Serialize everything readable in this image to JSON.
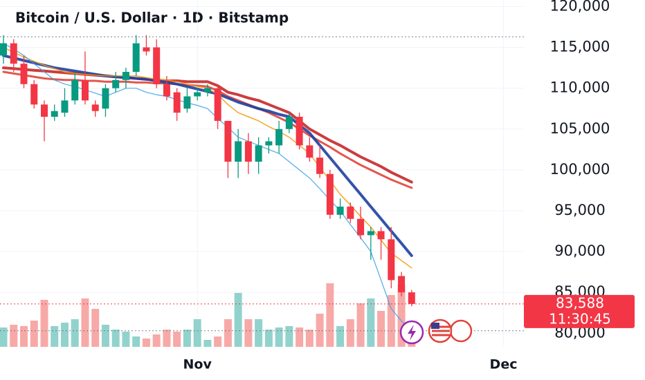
{
  "chart_data": {
    "type": "candlestick",
    "title": "Bitcoin / U.S. Dollar · 1D · Bitstamp",
    "x": [
      0,
      1,
      2,
      3,
      4,
      5,
      6,
      7,
      8,
      9,
      10,
      11,
      12,
      13,
      14,
      15,
      16,
      17,
      18,
      19,
      20,
      21,
      22,
      23,
      24,
      25,
      26,
      27,
      28,
      29,
      30,
      31,
      32,
      33,
      34,
      35,
      36,
      37,
      38,
      39,
      40
    ],
    "open": [
      114000,
      115500,
      113000,
      110500,
      108000,
      106500,
      107000,
      108500,
      111000,
      108000,
      107500,
      110000,
      111000,
      112000,
      115000,
      115000,
      110500,
      109500,
      107500,
      109000,
      109500,
      110000,
      106000,
      101000,
      103500,
      101000,
      103000,
      103000,
      105000,
      106500,
      103000,
      101500,
      99500,
      94500,
      95500,
      94000,
      92000,
      92500,
      91500,
      87000,
      85000
    ],
    "high": [
      116500,
      116000,
      114000,
      111000,
      108500,
      108000,
      110000,
      112000,
      114500,
      108500,
      110500,
      112000,
      112500,
      116500,
      116500,
      116000,
      111500,
      110000,
      110000,
      110000,
      110500,
      110500,
      106000,
      105000,
      104500,
      104000,
      104000,
      106000,
      107000,
      107000,
      104000,
      103000,
      100000,
      96500,
      96000,
      95500,
      93000,
      93000,
      93000,
      87500,
      85300
    ],
    "low": [
      113000,
      112000,
      110000,
      107500,
      103500,
      106000,
      106500,
      108000,
      108000,
      106500,
      106500,
      109500,
      110000,
      111500,
      114000,
      110000,
      108500,
      106000,
      107000,
      108500,
      109000,
      105000,
      99000,
      99000,
      99500,
      99500,
      102000,
      102000,
      104500,
      102500,
      101000,
      99000,
      94000,
      94000,
      93500,
      91500,
      89000,
      89000,
      85500,
      84500,
      83300
    ],
    "close": [
      115500,
      113000,
      110500,
      108000,
      106500,
      107200,
      108500,
      111000,
      108500,
      107200,
      110000,
      111000,
      112000,
      115500,
      114500,
      110500,
      109000,
      107000,
      109000,
      109500,
      110000,
      106000,
      101000,
      103500,
      101000,
      103000,
      103500,
      105000,
      106500,
      103000,
      101500,
      99500,
      94500,
      95500,
      94000,
      92000,
      92500,
      91500,
      86500,
      85000,
      83588
    ],
    "volume": [
      28,
      32,
      30,
      38,
      68,
      30,
      35,
      40,
      70,
      55,
      32,
      25,
      22,
      15,
      12,
      18,
      25,
      22,
      25,
      40,
      10,
      15,
      40,
      78,
      40,
      40,
      25,
      28,
      30,
      28,
      25,
      48,
      92,
      30,
      40,
      63,
      70,
      52,
      75,
      90,
      20
    ],
    "up_color": "#089981",
    "down_color": "#f23645",
    "volume_up_color": "#92d2cc",
    "volume_down_color": "#f7a9a7",
    "lines": [
      {
        "color": "#c62828",
        "values": [
          112500,
          112400,
          112300,
          112200,
          112100,
          112000,
          111900,
          111800,
          111700,
          111600,
          111500,
          111400,
          111300,
          111200,
          111100,
          111000,
          110900,
          110900,
          110800,
          110800,
          110800,
          110300,
          109500,
          109200,
          108800,
          108500,
          108000,
          107500,
          107000,
          106000,
          105000,
          104300,
          103600,
          103000,
          102300,
          101600,
          101000,
          100400,
          99700,
          99100,
          98500
        ]
      },
      {
        "color": "#e0443a",
        "values": [
          112000,
          111800,
          111600,
          111400,
          111200,
          111100,
          111000,
          111000,
          110900,
          110900,
          110800,
          110800,
          110800,
          110700,
          110700,
          110600,
          110600,
          110500,
          110400,
          110300,
          110200,
          109700,
          109000,
          108500,
          108000,
          107500,
          107000,
          106400,
          105800,
          105000,
          104200,
          103500,
          102800,
          102000,
          101300,
          100600,
          100000,
          99400,
          98800,
          98300,
          97800
        ]
      },
      {
        "color": "#1e40a0",
        "values": [
          114000,
          113700,
          113400,
          113100,
          112800,
          112500,
          112300,
          112100,
          111900,
          111700,
          111500,
          111400,
          111300,
          111200,
          111100,
          110900,
          110700,
          110500,
          110200,
          109900,
          109600,
          109300,
          108800,
          108300,
          107900,
          107500,
          107200,
          106800,
          106500,
          105500,
          104500,
          103000,
          101500,
          100000,
          98500,
          97000,
          95500,
          94000,
          92500,
          91000,
          89500
        ]
      },
      {
        "color": "#f39c12",
        "values": [
          115000,
          114400,
          113800,
          113300,
          112800,
          112400,
          112000,
          111800,
          111700,
          111600,
          111500,
          111500,
          111500,
          111500,
          111300,
          111100,
          111000,
          110800,
          110500,
          110200,
          110000,
          109200,
          108000,
          107000,
          106500,
          106000,
          105300,
          104700,
          104000,
          103000,
          102000,
          100300,
          98700,
          97000,
          95700,
          94300,
          93000,
          91400,
          89800,
          88900,
          88000
        ]
      },
      {
        "color": "#3aa0e8",
        "values": [
          115500,
          114800,
          114000,
          113000,
          112000,
          111000,
          110500,
          110200,
          109800,
          109400,
          109000,
          109500,
          110000,
          110000,
          109500,
          109200,
          109000,
          108600,
          108200,
          107900,
          107500,
          106300,
          105200,
          104000,
          103500,
          103000,
          102500,
          102000,
          101000,
          100000,
          99000,
          97700,
          96300,
          95000,
          93300,
          91700,
          90000,
          86500,
          83000,
          81500,
          80000
        ]
      }
    ],
    "ylim": [
      78500,
      120800
    ],
    "yticks": [
      {
        "value": 80000,
        "label": "80,000"
      },
      {
        "value": 85000,
        "label": "85,000"
      },
      {
        "value": 90000,
        "label": "90,000"
      },
      {
        "value": 95000,
        "label": "95,000"
      },
      {
        "value": 100000,
        "label": "100,000"
      },
      {
        "value": 105000,
        "label": "105,000"
      },
      {
        "value": 110000,
        "label": "110,000"
      },
      {
        "value": 115000,
        "label": "115,000"
      },
      {
        "value": 120000,
        "label": "120,000"
      }
    ],
    "xlim": [
      -0.34,
      51
    ],
    "xticks": [
      {
        "value": 19,
        "label": "Nov"
      },
      {
        "value": 49,
        "label": "Dec"
      }
    ],
    "last_price": {
      "value": 83588,
      "label": "83,588"
    },
    "countdown": "11:30:45",
    "high_line": 116300,
    "low_line": 80300,
    "grid": true
  }
}
